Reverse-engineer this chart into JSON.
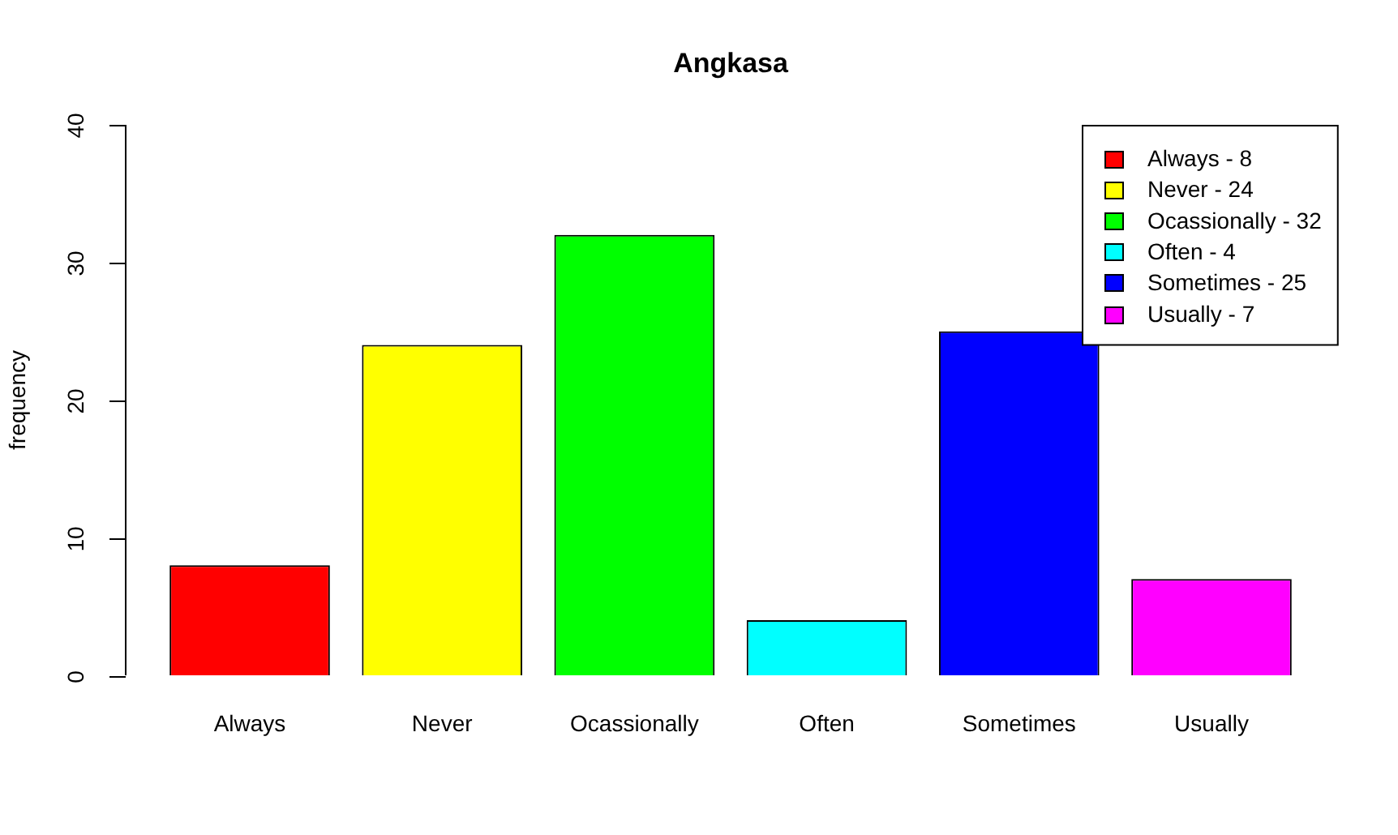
{
  "chart_data": {
    "type": "bar",
    "title": "Angkasa",
    "ylabel": "frequency",
    "categories": [
      "Always",
      "Never",
      "Ocassionally",
      "Often",
      "Sometimes",
      "Usually"
    ],
    "series": [
      {
        "name": "Always - 8",
        "color": "#ff0000",
        "values": [
          8,
          null,
          null,
          null,
          null,
          null
        ]
      },
      {
        "name": "Never - 24",
        "color": "#ffff00",
        "values": [
          null,
          24,
          null,
          null,
          null,
          null
        ]
      },
      {
        "name": "Ocassionally - 32",
        "color": "#00ff00",
        "values": [
          null,
          null,
          32,
          null,
          null,
          null
        ]
      },
      {
        "name": "Often - 4",
        "color": "#00ffff",
        "values": [
          null,
          null,
          null,
          4,
          null,
          null
        ]
      },
      {
        "name": "Sometimes - 25",
        "color": "#0000ff",
        "values": [
          null,
          null,
          null,
          null,
          25,
          null
        ]
      },
      {
        "name": "Usually - 7",
        "color": "#ff00ff",
        "values": [
          null,
          null,
          null,
          null,
          null,
          7
        ]
      }
    ],
    "ylim": [
      0,
      40
    ],
    "yticks": [
      0,
      10,
      20,
      30,
      40
    ],
    "legend": "top right"
  }
}
